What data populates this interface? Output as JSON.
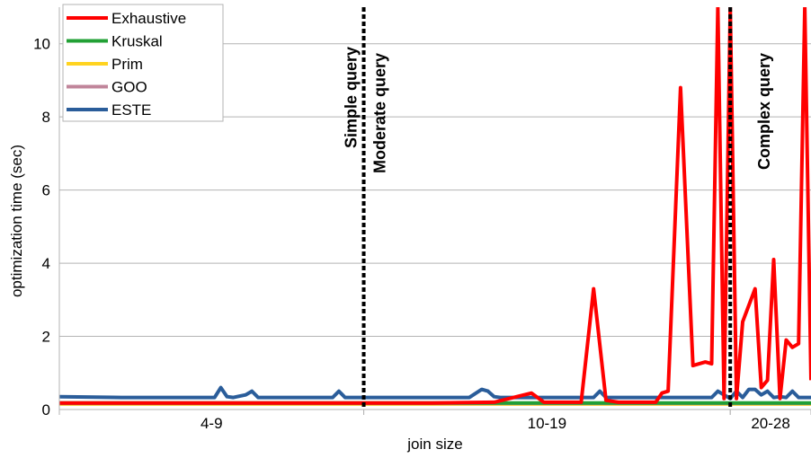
{
  "chart_data": {
    "type": "line",
    "title": "",
    "xlabel": "join size",
    "ylabel": "optimization time (sec)",
    "ylim": [
      0,
      11
    ],
    "yticks": [
      0,
      2,
      4,
      6,
      8,
      10
    ],
    "x_groups": [
      {
        "label": "4-9",
        "from": 0,
        "to": 49
      },
      {
        "label": "10-19",
        "from": 49,
        "to": 108
      },
      {
        "label": "20-28",
        "from": 108,
        "to": 121
      }
    ],
    "grid": true,
    "legend_position": "top-left",
    "dividers": [
      {
        "x": 49,
        "labels": [
          "Simple query",
          "Moderate query"
        ]
      },
      {
        "x": 108,
        "labels": [
          "Complex query"
        ]
      }
    ],
    "colors": {
      "Exhaustive": "#ff0000",
      "Kruskal": "#22a035",
      "Prim": "#ffd320",
      "GOO": "#c0859a",
      "ESTE": "#2a5d9a"
    },
    "series": [
      {
        "name": "Exhaustive",
        "x": [
          0,
          10,
          20,
          30,
          40,
          48,
          60,
          70,
          76,
          78,
          80,
          84,
          86,
          88,
          90,
          92,
          94,
          96,
          97,
          98,
          100,
          102,
          104,
          105,
          106,
          107,
          108,
          109,
          110,
          112,
          113,
          114,
          115,
          116,
          117,
          118,
          119,
          120,
          121
        ],
        "values": [
          0.18,
          0.18,
          0.18,
          0.18,
          0.18,
          0.18,
          0.18,
          0.2,
          0.45,
          0.2,
          0.2,
          0.2,
          3.3,
          0.25,
          0.2,
          0.2,
          0.2,
          0.2,
          0.45,
          0.5,
          8.8,
          1.2,
          1.3,
          1.25,
          11,
          0.3,
          11,
          0.3,
          2.4,
          3.3,
          0.6,
          0.8,
          4.1,
          0.3,
          1.9,
          1.7,
          1.8,
          11,
          0.8
        ]
      },
      {
        "name": "Kruskal",
        "x": [
          0,
          121
        ],
        "values": [
          0.18,
          0.18
        ]
      },
      {
        "name": "Prim",
        "x": [
          0,
          121
        ],
        "values": [
          0.15,
          0.15
        ]
      },
      {
        "name": "GOO",
        "x": [
          0,
          121
        ],
        "values": [
          0.17,
          0.17
        ]
      },
      {
        "name": "ESTE",
        "x": [
          0,
          10,
          25,
          26,
          27,
          28,
          30,
          31,
          32,
          44,
          45,
          46,
          66,
          68,
          69,
          70,
          71,
          86,
          87,
          88,
          105,
          106,
          108,
          109,
          110,
          111,
          112,
          113,
          114,
          115,
          116,
          117,
          118,
          119,
          121
        ],
        "values": [
          0.35,
          0.33,
          0.33,
          0.6,
          0.35,
          0.33,
          0.4,
          0.5,
          0.33,
          0.33,
          0.5,
          0.33,
          0.33,
          0.55,
          0.5,
          0.35,
          0.33,
          0.33,
          0.5,
          0.33,
          0.33,
          0.5,
          0.3,
          0.5,
          0.33,
          0.55,
          0.55,
          0.4,
          0.5,
          0.33,
          0.35,
          0.33,
          0.5,
          0.33,
          0.33
        ]
      }
    ]
  }
}
